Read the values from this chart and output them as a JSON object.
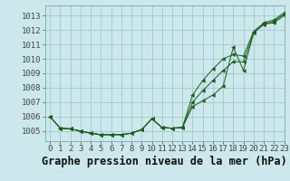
{
  "xlabel": "Graphe pression niveau de la mer (hPa)",
  "xlim": [
    -0.5,
    23
  ],
  "ylim": [
    1004.3,
    1013.7
  ],
  "yticks": [
    1005,
    1006,
    1007,
    1008,
    1009,
    1010,
    1011,
    1012,
    1013
  ],
  "xticks": [
    0,
    1,
    2,
    3,
    4,
    5,
    6,
    7,
    8,
    9,
    10,
    11,
    12,
    13,
    14,
    15,
    16,
    17,
    18,
    19,
    20,
    21,
    22,
    23
  ],
  "background_color": "#cce8ec",
  "grid_color": "#9fc8cc",
  "line_color": "#1a5c1a",
  "line1": [
    1006.0,
    1005.2,
    1005.15,
    1005.0,
    1004.85,
    1004.75,
    1004.75,
    1004.75,
    1004.85,
    1005.1,
    1005.85,
    1005.25,
    1005.2,
    1005.25,
    1006.7,
    1007.1,
    1007.5,
    1008.1,
    1010.8,
    1009.2,
    1011.8,
    1012.4,
    1012.5,
    1013.0,
    1013.3
  ],
  "line2": [
    1006.0,
    1005.2,
    1005.15,
    1005.0,
    1004.85,
    1004.75,
    1004.75,
    1004.75,
    1004.85,
    1005.1,
    1005.85,
    1005.25,
    1005.2,
    1005.25,
    1007.0,
    1007.8,
    1008.5,
    1009.2,
    1009.8,
    1009.8,
    1011.8,
    1012.4,
    1012.6,
    1013.1,
    1013.35
  ],
  "line3": [
    1006.0,
    1005.2,
    1005.15,
    1005.0,
    1004.85,
    1004.75,
    1004.75,
    1004.75,
    1004.85,
    1005.1,
    1005.85,
    1005.25,
    1005.2,
    1005.25,
    1007.5,
    1008.5,
    1009.3,
    1010.0,
    1010.3,
    1010.2,
    1011.9,
    1012.5,
    1012.7,
    1013.2,
    1013.4
  ],
  "tick_fontsize": 6.5,
  "label_fontsize": 8.5
}
